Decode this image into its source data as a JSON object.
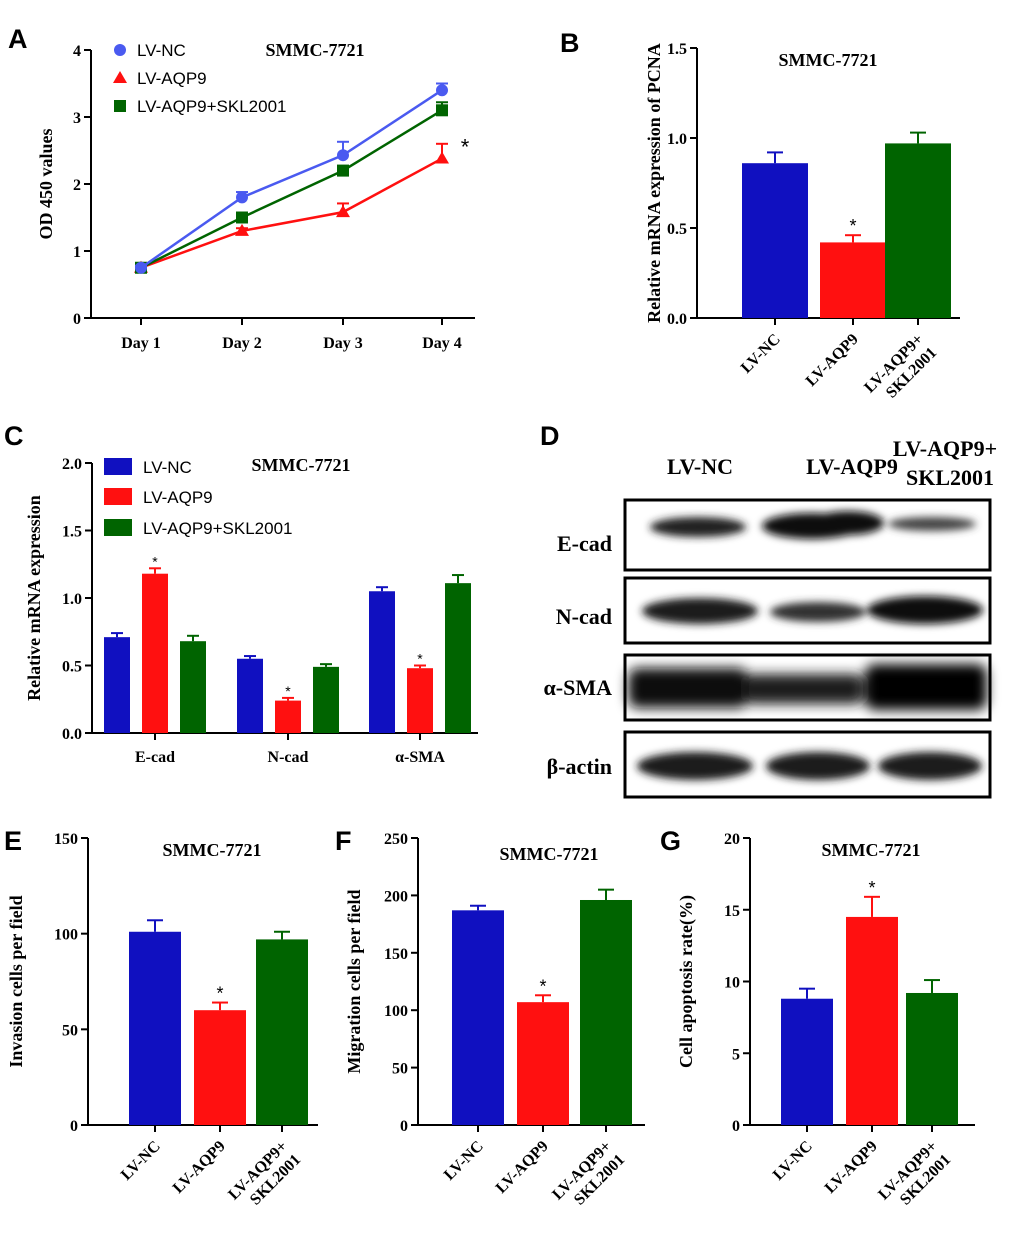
{
  "colors": {
    "nc": "#1010c0",
    "aqp9": "#ff1010",
    "skl": "#006400",
    "nc_line": "#4a5af0"
  },
  "panel_letters": {
    "A": "A",
    "B": "B",
    "C": "C",
    "D": "D",
    "E": "E",
    "F": "F",
    "G": "G"
  },
  "significance_mark": "*",
  "western_blot": {
    "columns": [
      "LV-NC",
      "LV-AQP9",
      "LV-AQP9+",
      "SKL2001"
    ],
    "rows": [
      "E-cad",
      "N-cad",
      "α-SMA",
      "β-actin"
    ]
  },
  "chart_data": [
    {
      "id": "A",
      "type": "line",
      "title": "SMMC-7721",
      "xlabel": "",
      "ylabel": "OD 450 values",
      "categories": [
        "Day 1",
        "Day 2",
        "Day 3",
        "Day 4"
      ],
      "ylim": [
        0,
        4
      ],
      "yticks": [
        "0",
        "1",
        "2",
        "3",
        "4"
      ],
      "legend_position": "top-left",
      "series": [
        {
          "name": "LV-NC",
          "values": [
            0.75,
            1.8,
            2.43,
            3.4
          ],
          "errors": [
            0.03,
            0.08,
            0.2,
            0.1
          ]
        },
        {
          "name": "LV-AQP9",
          "values": [
            0.75,
            1.3,
            1.58,
            2.38
          ],
          "errors": [
            0.03,
            0.04,
            0.13,
            0.22
          ]
        },
        {
          "name": "LV-AQP9+SKL2001",
          "values": [
            0.75,
            1.5,
            2.2,
            3.1
          ],
          "errors": [
            0.03,
            0.04,
            0.07,
            0.12
          ]
        }
      ],
      "annotations": [
        {
          "series": "LV-AQP9",
          "category": "Day 4",
          "text": "*"
        }
      ]
    },
    {
      "id": "B",
      "type": "bar",
      "title": "SMMC-7721",
      "ylabel": "Relative mRNA expression of  PCNA",
      "categories": [
        "LV-NC",
        "LV-AQP9",
        "LV-AQP9+ SKL2001"
      ],
      "values": [
        0.86,
        0.42,
        0.97
      ],
      "errors": [
        0.06,
        0.04,
        0.06
      ],
      "ylim": [
        0,
        1.5
      ],
      "yticks": [
        "0.0",
        "0.5",
        "1.0",
        "1.5"
      ],
      "significant": [
        1
      ]
    },
    {
      "id": "C",
      "type": "bar",
      "title": "SMMC-7721",
      "ylabel": "Relative mRNA expression",
      "categories": [
        "E-cad",
        "N-cad",
        "α-SMA"
      ],
      "ylim": [
        0,
        2.0
      ],
      "yticks": [
        "0.0",
        "0.5",
        "1.0",
        "1.5",
        "2.0"
      ],
      "legend_position": "top-left",
      "series": [
        {
          "name": "LV-NC",
          "values": [
            0.71,
            0.55,
            1.05
          ],
          "errors": [
            0.03,
            0.02,
            0.03
          ]
        },
        {
          "name": "LV-AQP9",
          "values": [
            1.18,
            0.24,
            0.48
          ],
          "errors": [
            0.04,
            0.02,
            0.02
          ]
        },
        {
          "name": "LV-AQP9+SKL2001",
          "values": [
            0.68,
            0.49,
            1.11
          ],
          "errors": [
            0.04,
            0.02,
            0.06
          ]
        }
      ],
      "significant_series": "LV-AQP9"
    },
    {
      "id": "E",
      "type": "bar",
      "title": "SMMC-7721",
      "ylabel": "Invasion cells per field",
      "categories": [
        "LV-NC",
        "LV-AQP9",
        "LV-AQP9+ SKL2001"
      ],
      "values": [
        101,
        60,
        97
      ],
      "errors": [
        6,
        4,
        4
      ],
      "ylim": [
        0,
        150
      ],
      "yticks": [
        "0",
        "50",
        "100",
        "150"
      ],
      "significant": [
        1
      ]
    },
    {
      "id": "F",
      "type": "bar",
      "title": "SMMC-7721",
      "ylabel": "Migration cells per field",
      "categories": [
        "LV-NC",
        "LV-AQP9",
        "LV-AQP9+ SKL2001"
      ],
      "values": [
        187,
        107,
        196
      ],
      "errors": [
        4,
        6,
        9
      ],
      "ylim": [
        0,
        250
      ],
      "yticks": [
        "0",
        "50",
        "100",
        "150",
        "200",
        "250"
      ],
      "significant": [
        1
      ]
    },
    {
      "id": "G",
      "type": "bar",
      "title": "SMMC-7721",
      "ylabel": "Cell apoptosis rate(%)",
      "categories": [
        "LV-NC",
        "LV-AQP9",
        "LV-AQP9+ SKL2001"
      ],
      "values": [
        8.8,
        14.5,
        9.2
      ],
      "errors": [
        0.7,
        1.4,
        0.9
      ],
      "ylim": [
        0,
        20
      ],
      "yticks": [
        "0",
        "5",
        "10",
        "15",
        "20"
      ],
      "significant": [
        1
      ]
    }
  ]
}
